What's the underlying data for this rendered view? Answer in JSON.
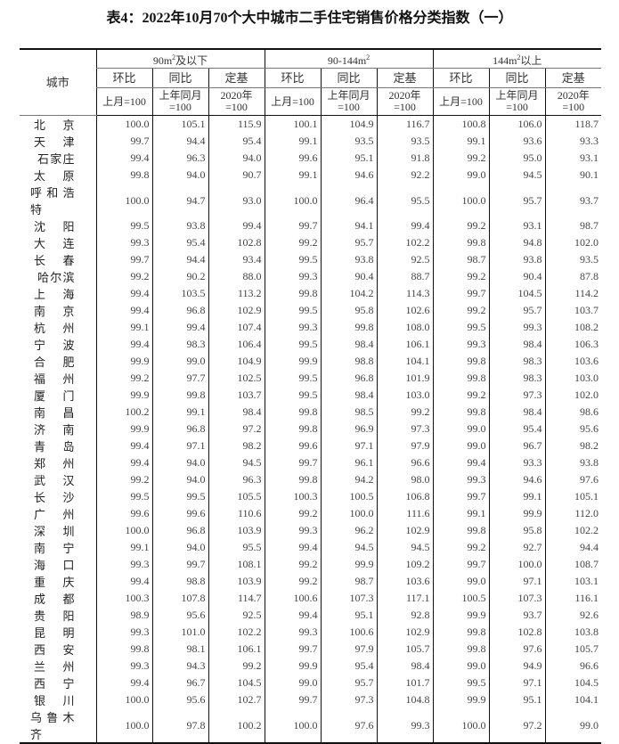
{
  "title": "表4：2022年10月70个大中城市二手住宅销售价格分类指数（一）",
  "header": {
    "city": "城市",
    "groups": [
      {
        "base": "90m",
        "sup": "2",
        "suffix": "及以下"
      },
      {
        "base": "90-144m",
        "sup": "2",
        "suffix": ""
      },
      {
        "base": "144m",
        "sup": "2",
        "suffix": "以上"
      }
    ],
    "sub": [
      "环比",
      "同比",
      "定基"
    ],
    "units": [
      "上月=100",
      "上年同月 =100",
      "2020年 =100"
    ]
  },
  "rows": [
    {
      "city": "北京",
      "v": [
        "100.0",
        "105.1",
        "115.9",
        "100.1",
        "104.9",
        "116.7",
        "100.8",
        "106.0",
        "118.7"
      ]
    },
    {
      "city": "天津",
      "v": [
        "99.7",
        "94.4",
        "95.4",
        "99.1",
        "93.5",
        "93.5",
        "99.1",
        "93.6",
        "93.3"
      ]
    },
    {
      "city": "石家庄",
      "v": [
        "99.4",
        "96.3",
        "94.0",
        "99.6",
        "95.1",
        "91.8",
        "99.2",
        "95.0",
        "93.1"
      ]
    },
    {
      "city": "太原",
      "v": [
        "99.8",
        "94.0",
        "90.7",
        "99.1",
        "94.6",
        "92.2",
        "99.0",
        "94.5",
        "90.1"
      ]
    },
    {
      "city": "呼和浩特",
      "v": [
        "100.0",
        "94.7",
        "93.0",
        "100.0",
        "96.4",
        "95.5",
        "100.0",
        "95.7",
        "93.7"
      ]
    },
    {
      "city": "沈阳",
      "v": [
        "99.5",
        "93.8",
        "99.4",
        "99.7",
        "94.1",
        "99.4",
        "99.2",
        "93.1",
        "98.7"
      ]
    },
    {
      "city": "大连",
      "v": [
        "99.3",
        "95.4",
        "102.8",
        "99.2",
        "95.7",
        "102.2",
        "99.8",
        "94.8",
        "102.0"
      ]
    },
    {
      "city": "长春",
      "v": [
        "99.7",
        "94.4",
        "93.4",
        "99.5",
        "93.8",
        "92.5",
        "98.7",
        "93.8",
        "93.5"
      ]
    },
    {
      "city": "哈尔滨",
      "v": [
        "99.2",
        "90.2",
        "88.0",
        "99.3",
        "90.4",
        "88.7",
        "99.2",
        "90.4",
        "87.8"
      ]
    },
    {
      "city": "上海",
      "v": [
        "99.4",
        "103.5",
        "113.2",
        "99.8",
        "104.2",
        "114.3",
        "99.7",
        "104.5",
        "114.2"
      ]
    },
    {
      "city": "南京",
      "v": [
        "99.4",
        "96.8",
        "102.9",
        "99.5",
        "95.8",
        "102.6",
        "99.2",
        "95.7",
        "103.7"
      ]
    },
    {
      "city": "杭州",
      "v": [
        "99.1",
        "99.4",
        "107.4",
        "99.3",
        "99.8",
        "108.0",
        "99.5",
        "99.3",
        "108.2"
      ]
    },
    {
      "city": "宁波",
      "v": [
        "99.4",
        "98.3",
        "106.4",
        "99.5",
        "98.4",
        "106.1",
        "99.3",
        "98.4",
        "106.3"
      ]
    },
    {
      "city": "合肥",
      "v": [
        "99.9",
        "99.0",
        "104.9",
        "99.9",
        "98.8",
        "104.1",
        "99.8",
        "98.3",
        "103.6"
      ]
    },
    {
      "city": "福州",
      "v": [
        "99.2",
        "97.7",
        "102.5",
        "99.5",
        "96.8",
        "101.9",
        "99.8",
        "98.3",
        "103.0"
      ]
    },
    {
      "city": "厦门",
      "v": [
        "99.9",
        "99.8",
        "103.7",
        "99.5",
        "98.4",
        "103.0",
        "99.2",
        "97.3",
        "102.0"
      ]
    },
    {
      "city": "南昌",
      "v": [
        "100.2",
        "99.1",
        "98.4",
        "99.8",
        "98.5",
        "99.2",
        "99.8",
        "98.4",
        "98.6"
      ]
    },
    {
      "city": "济南",
      "v": [
        "99.9",
        "96.8",
        "97.2",
        "99.8",
        "96.9",
        "97.3",
        "99.0",
        "95.4",
        "95.6"
      ]
    },
    {
      "city": "青岛",
      "v": [
        "99.4",
        "97.1",
        "98.2",
        "99.6",
        "97.1",
        "97.9",
        "99.0",
        "96.7",
        "98.2"
      ]
    },
    {
      "city": "郑州",
      "v": [
        "99.4",
        "94.0",
        "94.5",
        "99.7",
        "96.1",
        "96.6",
        "99.4",
        "93.3",
        "93.8"
      ]
    },
    {
      "city": "武汉",
      "v": [
        "99.2",
        "94.0",
        "96.3",
        "99.8",
        "94.2",
        "98.0",
        "99.3",
        "94.6",
        "97.6"
      ]
    },
    {
      "city": "长沙",
      "v": [
        "99.5",
        "99.5",
        "105.5",
        "100.3",
        "100.5",
        "106.8",
        "99.7",
        "99.1",
        "105.1"
      ]
    },
    {
      "city": "广州",
      "v": [
        "99.6",
        "99.6",
        "110.6",
        "99.2",
        "100.0",
        "111.6",
        "99.1",
        "99.9",
        "112.0"
      ]
    },
    {
      "city": "深圳",
      "v": [
        "100.0",
        "96.8",
        "103.9",
        "99.3",
        "96.2",
        "102.9",
        "99.8",
        "95.8",
        "102.2"
      ]
    },
    {
      "city": "南宁",
      "v": [
        "99.1",
        "94.0",
        "95.5",
        "99.4",
        "94.5",
        "94.5",
        "99.2",
        "92.7",
        "94.4"
      ]
    },
    {
      "city": "海口",
      "v": [
        "99.3",
        "99.7",
        "108.1",
        "99.2",
        "99.9",
        "109.2",
        "99.7",
        "100.0",
        "108.7"
      ]
    },
    {
      "city": "重庆",
      "v": [
        "99.4",
        "98.8",
        "103.9",
        "99.2",
        "98.7",
        "103.6",
        "99.0",
        "97.1",
        "103.1"
      ]
    },
    {
      "city": "成都",
      "v": [
        "100.3",
        "107.8",
        "114.7",
        "100.6",
        "107.3",
        "117.1",
        "100.5",
        "107.3",
        "116.1"
      ]
    },
    {
      "city": "贵阳",
      "v": [
        "98.9",
        "95.6",
        "92.5",
        "99.4",
        "95.1",
        "92.8",
        "99.9",
        "93.7",
        "92.6"
      ]
    },
    {
      "city": "昆明",
      "v": [
        "99.3",
        "101.0",
        "102.2",
        "99.3",
        "100.6",
        "102.9",
        "99.8",
        "102.8",
        "103.8"
      ]
    },
    {
      "city": "西安",
      "v": [
        "99.8",
        "98.1",
        "106.1",
        "99.7",
        "97.9",
        "105.7",
        "99.8",
        "97.6",
        "105.7"
      ]
    },
    {
      "city": "兰州",
      "v": [
        "99.3",
        "94.3",
        "99.2",
        "99.9",
        "95.4",
        "98.4",
        "99.0",
        "94.9",
        "96.6"
      ]
    },
    {
      "city": "西宁",
      "v": [
        "99.4",
        "96.7",
        "104.5",
        "99.0",
        "95.7",
        "101.7",
        "99.5",
        "97.1",
        "104.5"
      ]
    },
    {
      "city": "银川",
      "v": [
        "100.0",
        "95.6",
        "102.7",
        "99.7",
        "97.3",
        "104.8",
        "99.9",
        "95.1",
        "104.1"
      ]
    },
    {
      "city": "乌鲁木齐",
      "v": [
        "100.0",
        "97.8",
        "100.2",
        "100.0",
        "97.6",
        "99.3",
        "100.0",
        "97.2",
        "99.0"
      ]
    }
  ]
}
